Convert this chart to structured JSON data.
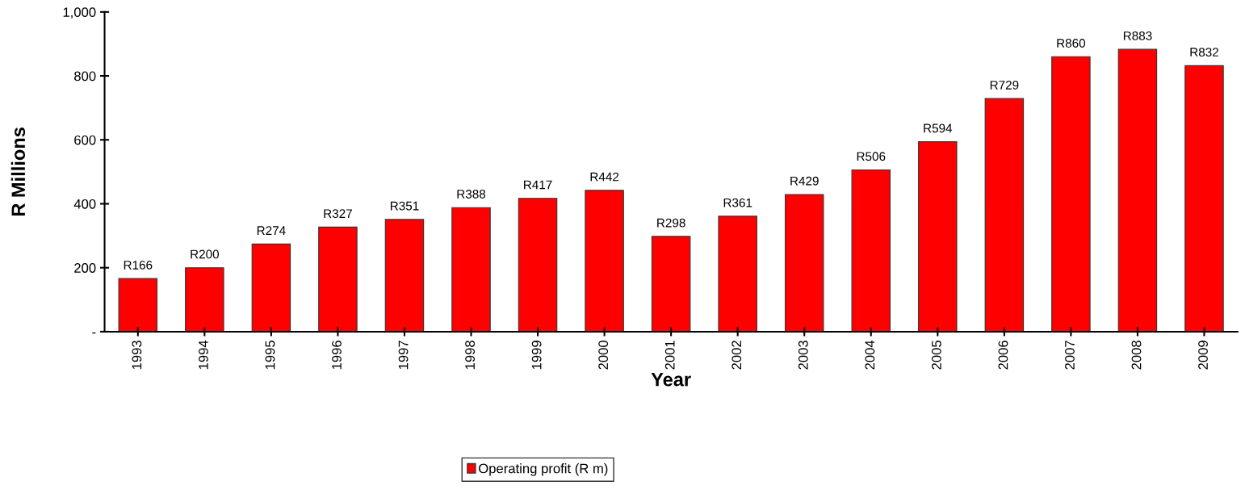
{
  "chart_data": {
    "type": "bar",
    "xlabel": "Year",
    "ylabel": "R Millions",
    "categories": [
      "1993",
      "1994",
      "1995",
      "1996",
      "1997",
      "1998",
      "1999",
      "2000",
      "2001",
      "2002",
      "2003",
      "2004",
      "2005",
      "2006",
      "2007",
      "2008",
      "2009"
    ],
    "series": [
      {
        "name": "Operating profit (R m)",
        "color": "#ff0000",
        "values": [
          166,
          200,
          274,
          327,
          351,
          388,
          417,
          442,
          298,
          361,
          429,
          506,
          594,
          729,
          860,
          883,
          832
        ],
        "value_labels": [
          "R166",
          "R200",
          "R274",
          "R327",
          "R351",
          "R388",
          "R417",
          "R442",
          "R298",
          "R361",
          "R429",
          "R506",
          "R594",
          "R729",
          "R860",
          "R883",
          "R832"
        ]
      }
    ],
    "ylim": [
      0,
      1000
    ],
    "yticks": [
      {
        "value": 0,
        "label": "-"
      },
      200,
      400,
      600,
      800,
      {
        "value": 1000,
        "label": "1,000"
      }
    ],
    "grid": false,
    "legend": "bottom"
  }
}
